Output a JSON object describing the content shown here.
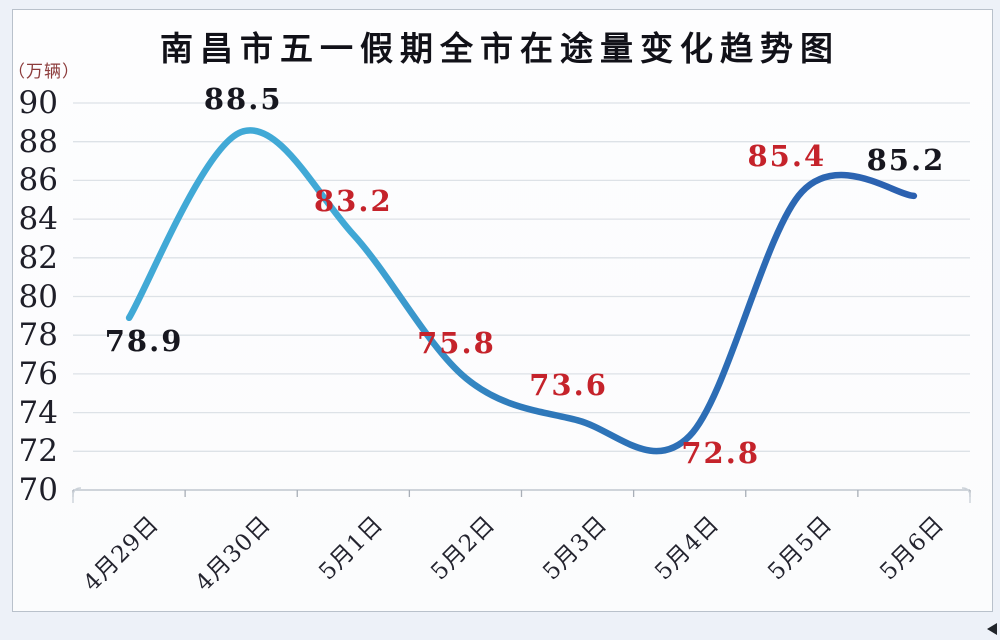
{
  "chart_data": {
    "type": "line",
    "title": "南昌市五一假期全市在途量变化趋势图",
    "unit_label": "（万辆）",
    "categories": [
      "4月29日",
      "4月30日",
      "5月1日",
      "5月2日",
      "5月3日",
      "5月4日",
      "5月5日",
      "5月6日"
    ],
    "values": [
      78.9,
      88.5,
      83.2,
      75.8,
      73.6,
      72.8,
      85.4,
      85.2
    ],
    "point_labels": [
      {
        "text": "78.9",
        "color": "#17171f"
      },
      {
        "text": "88.5",
        "color": "#17171f"
      },
      {
        "text": "83.2",
        "color": "#c5232b"
      },
      {
        "text": "75.8",
        "color": "#c5232b"
      },
      {
        "text": "73.6",
        "color": "#c5232b"
      },
      {
        "text": "72.8",
        "color": "#c5232b"
      },
      {
        "text": "85.4",
        "color": "#c5232b"
      },
      {
        "text": "85.2",
        "color": "#17171f"
      }
    ],
    "xlabel": "",
    "ylabel": "",
    "ylim": [
      70,
      90
    ],
    "ytick_step": 2,
    "yticks": [
      "90",
      "88",
      "86",
      "84",
      "82",
      "80",
      "78",
      "76",
      "74",
      "72",
      "70"
    ],
    "grid": true,
    "legend": "none",
    "line_smooth": true,
    "line_colors": {
      "start": "#41a9d6",
      "mid": "#2e79ba",
      "end": "#2b60b0"
    },
    "grid_color": "#dde2e7",
    "axis_color": "#c0c7cf"
  }
}
